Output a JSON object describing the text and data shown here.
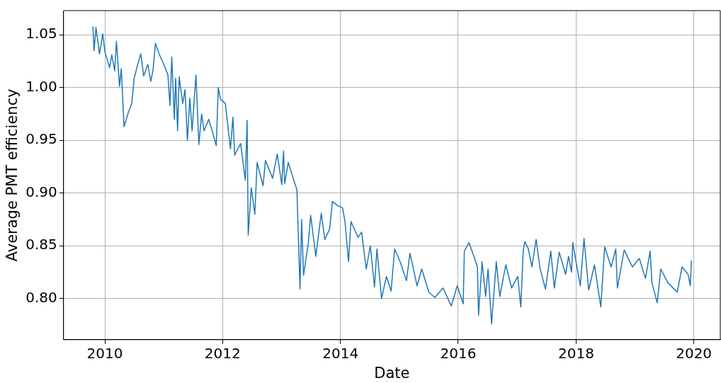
{
  "chart_data": {
    "type": "line",
    "xlabel": "Date",
    "ylabel": "Average PMT efficiency",
    "color": "#1f77b4",
    "grid": true,
    "legend": false,
    "marker": "none",
    "line_style": "solid",
    "x": [
      "2009-10-19",
      "2009-10-26",
      "2009-11-07",
      "2009-11-29",
      "2009-12-19",
      "2010-01-01",
      "2010-01-30",
      "2010-02-13",
      "2010-03-03",
      "2010-03-14",
      "2010-04-02",
      "2010-04-13",
      "2010-04-30",
      "2010-05-26",
      "2010-06-17",
      "2010-07-02",
      "2010-07-24",
      "2010-08-12",
      "2010-08-30",
      "2010-09-24",
      "2010-10-13",
      "2010-10-27",
      "2010-11-11",
      "2010-12-03",
      "2011-01-02",
      "2011-01-27",
      "2011-02-09",
      "2011-02-20",
      "2011-03-08",
      "2011-03-16",
      "2011-03-28",
      "2011-04-07",
      "2011-04-29",
      "2011-05-13",
      "2011-05-28",
      "2011-06-12",
      "2011-06-26",
      "2011-07-20",
      "2011-08-07",
      "2011-08-24",
      "2011-09-08",
      "2011-10-07",
      "2011-11-05",
      "2011-11-23",
      "2011-12-05",
      "2011-12-19",
      "2012-01-18",
      "2012-02-19",
      "2012-03-05",
      "2012-03-16",
      "2012-04-22",
      "2012-05-21",
      "2012-06-01",
      "2012-06-08",
      "2012-06-27",
      "2012-07-19",
      "2012-08-02",
      "2012-09-08",
      "2012-09-23",
      "2012-11-06",
      "2012-12-05",
      "2013-01-02",
      "2013-01-13",
      "2013-01-20",
      "2013-02-11",
      "2013-04-06",
      "2013-04-25",
      "2013-05-05",
      "2013-05-17",
      "2013-06-16",
      "2013-06-30",
      "2013-08-01",
      "2013-09-04",
      "2013-09-26",
      "2013-10-26",
      "2013-11-12",
      "2013-12-16",
      "2014-01-14",
      "2014-01-29",
      "2014-02-20",
      "2014-03-07",
      "2014-04-20",
      "2014-05-12",
      "2014-06-10",
      "2014-07-05",
      "2014-07-31",
      "2014-08-15",
      "2014-09-13",
      "2014-10-13",
      "2014-11-11",
      "2014-12-03",
      "2015-01-08",
      "2015-02-14",
      "2015-03-08",
      "2015-04-21",
      "2015-05-20",
      "2015-07-03",
      "2015-08-09",
      "2015-09-29",
      "2015-11-19",
      "2015-12-26",
      "2016-02-01",
      "2016-02-08",
      "2016-03-08",
      "2016-04-07",
      "2016-04-29",
      "2016-05-06",
      "2016-05-28",
      "2016-06-19",
      "2016-07-04",
      "2016-07-26",
      "2016-08-24",
      "2016-09-15",
      "2016-10-22",
      "2016-11-27",
      "2017-01-04",
      "2017-01-23",
      "2017-02-07",
      "2017-02-17",
      "2017-03-11",
      "2017-04-02",
      "2017-04-28",
      "2017-05-23",
      "2017-06-25",
      "2017-07-28",
      "2017-08-19",
      "2017-09-18",
      "2017-10-28",
      "2017-11-15",
      "2017-12-04",
      "2017-12-11",
      "2018-01-27",
      "2018-02-19",
      "2018-03-20",
      "2018-04-25",
      "2018-06-03",
      "2018-06-27",
      "2018-08-06",
      "2018-09-04",
      "2018-09-14",
      "2018-10-26",
      "2018-12-16",
      "2019-01-28",
      "2019-03-07",
      "2019-04-05",
      "2019-04-16",
      "2019-05-19",
      "2019-06-10",
      "2019-07-24",
      "2019-09-20",
      "2019-10-20",
      "2019-11-26",
      "2019-12-10",
      "2019-12-17"
    ],
    "values": [
      1.058,
      1.035,
      1.057,
      1.032,
      1.051,
      1.034,
      1.019,
      1.031,
      1.016,
      1.044,
      1.001,
      1.018,
      0.963,
      0.976,
      0.985,
      1.009,
      1.022,
      1.032,
      1.011,
      1.022,
      1.006,
      1.017,
      1.042,
      1.032,
      1.022,
      1.012,
      0.983,
      1.029,
      0.97,
      1.009,
      0.959,
      1.01,
      0.985,
      0.998,
      0.95,
      0.99,
      0.959,
      1.012,
      0.946,
      0.975,
      0.959,
      0.97,
      0.955,
      0.945,
      1.0,
      0.989,
      0.985,
      0.942,
      0.972,
      0.936,
      0.947,
      0.912,
      0.969,
      0.86,
      0.905,
      0.88,
      0.929,
      0.907,
      0.931,
      0.914,
      0.937,
      0.908,
      0.94,
      0.909,
      0.929,
      0.903,
      0.809,
      0.875,
      0.822,
      0.853,
      0.879,
      0.84,
      0.881,
      0.856,
      0.866,
      0.892,
      0.888,
      0.886,
      0.873,
      0.835,
      0.873,
      0.858,
      0.863,
      0.828,
      0.85,
      0.811,
      0.847,
      0.8,
      0.821,
      0.807,
      0.847,
      0.834,
      0.817,
      0.843,
      0.812,
      0.828,
      0.806,
      0.801,
      0.81,
      0.793,
      0.812,
      0.795,
      0.845,
      0.853,
      0.84,
      0.83,
      0.784,
      0.835,
      0.802,
      0.828,
      0.776,
      0.835,
      0.802,
      0.832,
      0.81,
      0.821,
      0.792,
      0.845,
      0.854,
      0.847,
      0.83,
      0.856,
      0.828,
      0.809,
      0.845,
      0.81,
      0.844,
      0.823,
      0.84,
      0.825,
      0.853,
      0.812,
      0.857,
      0.808,
      0.832,
      0.792,
      0.849,
      0.83,
      0.847,
      0.81,
      0.846,
      0.83,
      0.838,
      0.819,
      0.845,
      0.815,
      0.796,
      0.828,
      0.815,
      0.806,
      0.83,
      0.823,
      0.812,
      0.836
    ],
    "xlim": [
      "2009-04-20",
      "2020-06-13"
    ],
    "xticks": [
      "2010",
      "2012",
      "2014",
      "2016",
      "2018",
      "2020"
    ],
    "ylim": [
      0.761,
      1.073
    ],
    "yticks": [
      {
        "value": 0.8,
        "label": "0.80"
      },
      {
        "value": 0.85,
        "label": "0.85"
      },
      {
        "value": 0.9,
        "label": "0.90"
      },
      {
        "value": 0.95,
        "label": "0.95"
      },
      {
        "value": 1.0,
        "label": "1.00"
      },
      {
        "value": 1.05,
        "label": "1.05"
      }
    ]
  }
}
